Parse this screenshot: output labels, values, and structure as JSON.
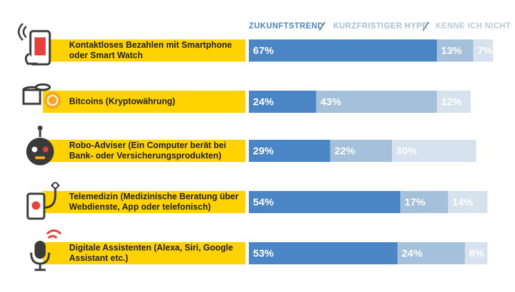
{
  "chart_data": {
    "type": "stacked-bar-horizontal",
    "categories": [
      "Kontaktloses Bezahlen mit Smartphone oder Smart Watch",
      "Bitcoins (Kryptowährung)",
      "Robo-Adviser (Ein Computer berät bei Bank- oder Versicherungsprodukten)",
      "Telemedizin (Medizinische Beratung über Webdienste, App oder telefonisch)",
      "Digitale Assistenten (Alexa, Siri, Google Assistant etc.)"
    ],
    "series": [
      {
        "name": "ZUKUNFTSTREND",
        "color": "#4a86c6",
        "values": [
          67,
          24,
          29,
          54,
          53
        ],
        "value_labels": [
          "67%",
          "24%",
          "29%",
          "54%",
          "53%"
        ]
      },
      {
        "name": "KURZFRISTIGER HYPE",
        "color": "#a4c0da",
        "values": [
          13,
          43,
          22,
          17,
          24
        ],
        "value_labels": [
          "13%",
          "43%",
          "22%",
          "17%",
          "24%"
        ]
      },
      {
        "name": "KENNE ICH NICHT",
        "color": "#d6e2ed",
        "values": [
          7,
          12,
          30,
          14,
          8
        ],
        "value_labels": [
          "7%",
          "12%",
          "30%",
          "14%",
          "8%"
        ]
      }
    ]
  }
}
